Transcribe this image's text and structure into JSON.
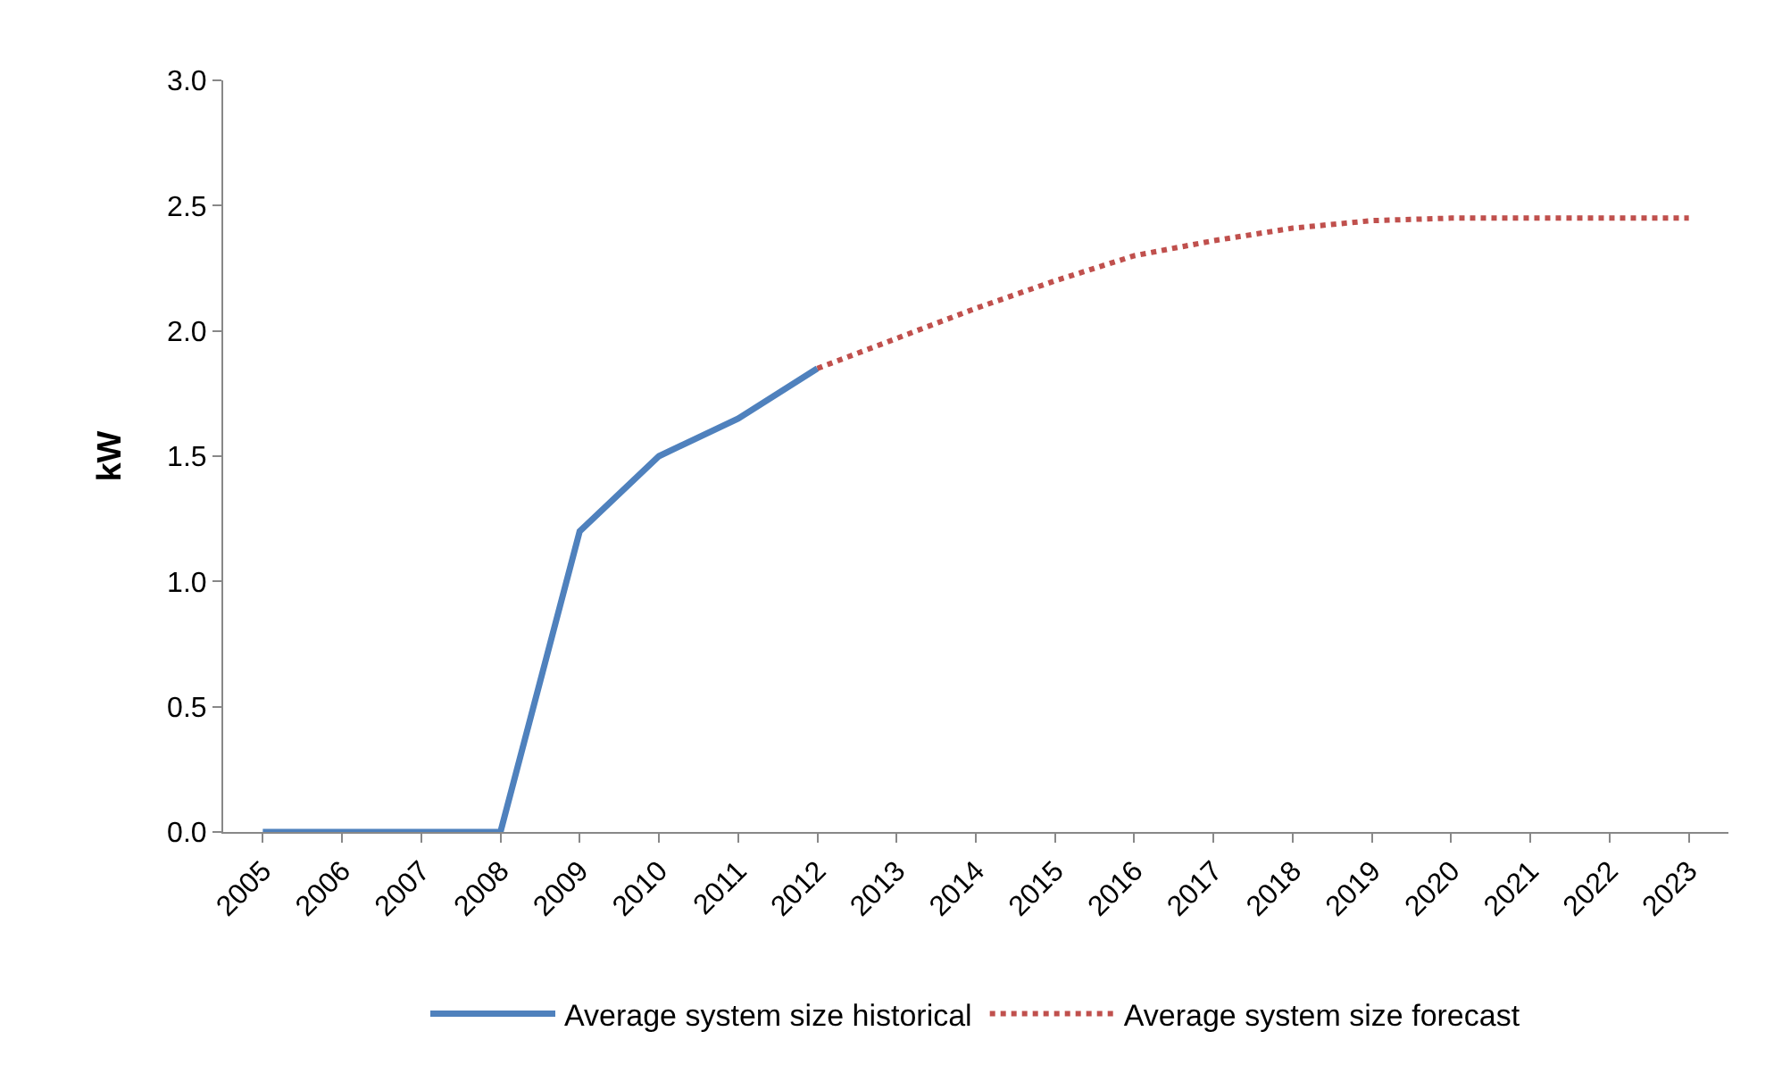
{
  "chart_data": {
    "type": "line",
    "ylabel": "kW",
    "categories": [
      "2005",
      "2006",
      "2007",
      "2008",
      "2009",
      "2010",
      "2011",
      "2012",
      "2013",
      "2014",
      "2015",
      "2016",
      "2017",
      "2018",
      "2019",
      "2020",
      "2021",
      "2022",
      "2023"
    ],
    "series": [
      {
        "name": "Average system size historical",
        "color": "#4f81bd",
        "line_style": "solid",
        "values": [
          0,
          0,
          0,
          0,
          1.2,
          1.5,
          1.65,
          1.85,
          null,
          null,
          null,
          null,
          null,
          null,
          null,
          null,
          null,
          null,
          null
        ]
      },
      {
        "name": "Average system size forecast",
        "color": "#c0504d",
        "line_style": "dotted",
        "values": [
          null,
          null,
          null,
          null,
          null,
          null,
          null,
          1.85,
          1.97,
          2.09,
          2.2,
          2.3,
          2.36,
          2.41,
          2.44,
          2.45,
          2.45,
          2.45,
          2.45
        ]
      }
    ],
    "ylim": [
      0,
      3
    ],
    "yticks": [
      {
        "value": 0,
        "label": "0.0"
      },
      {
        "value": 0.5,
        "label": "0.5"
      },
      {
        "value": 1,
        "label": "1.0"
      },
      {
        "value": 1.5,
        "label": "1.5"
      },
      {
        "value": 2,
        "label": "2.0"
      },
      {
        "value": 2.5,
        "label": "2.5"
      },
      {
        "value": 3,
        "label": "3.0"
      }
    ],
    "grid": false,
    "legend": "bottom",
    "marker": "none"
  }
}
